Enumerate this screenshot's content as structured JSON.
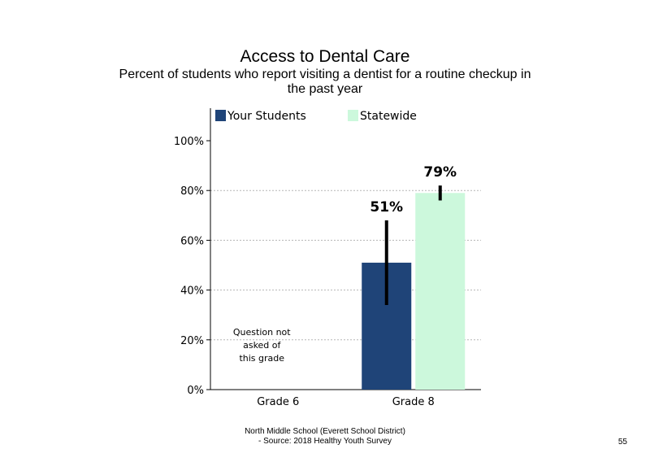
{
  "title": "Access to Dental Care",
  "subtitle": "Percent of students who report visiting a dentist for a routine checkup in the past year",
  "footer": {
    "line1": "North Middle School (Everett School District)",
    "line2": "- Source: 2018 Healthy  Youth Survey"
  },
  "page_number": "55",
  "chart_data": {
    "type": "bar",
    "categories": [
      "Grade 6",
      "Grade 8"
    ],
    "series": [
      {
        "name": "Your Students",
        "color": "#1f4478",
        "values": [
          null,
          51
        ],
        "error": [
          null,
          [
            34,
            68
          ]
        ],
        "labels": [
          "",
          "51%"
        ]
      },
      {
        "name": "Statewide",
        "color": "#ccf8dc",
        "values": [
          null,
          79
        ],
        "error": [
          null,
          [
            76,
            82
          ]
        ],
        "labels": [
          "",
          "79%"
        ]
      }
    ],
    "yticks": [
      "0%",
      "20%",
      "40%",
      "60%",
      "80%",
      "100%"
    ],
    "ylim": [
      0,
      100
    ],
    "grid": true,
    "legend": "top",
    "annotation": [
      "Question not",
      "asked of",
      "this grade"
    ]
  }
}
